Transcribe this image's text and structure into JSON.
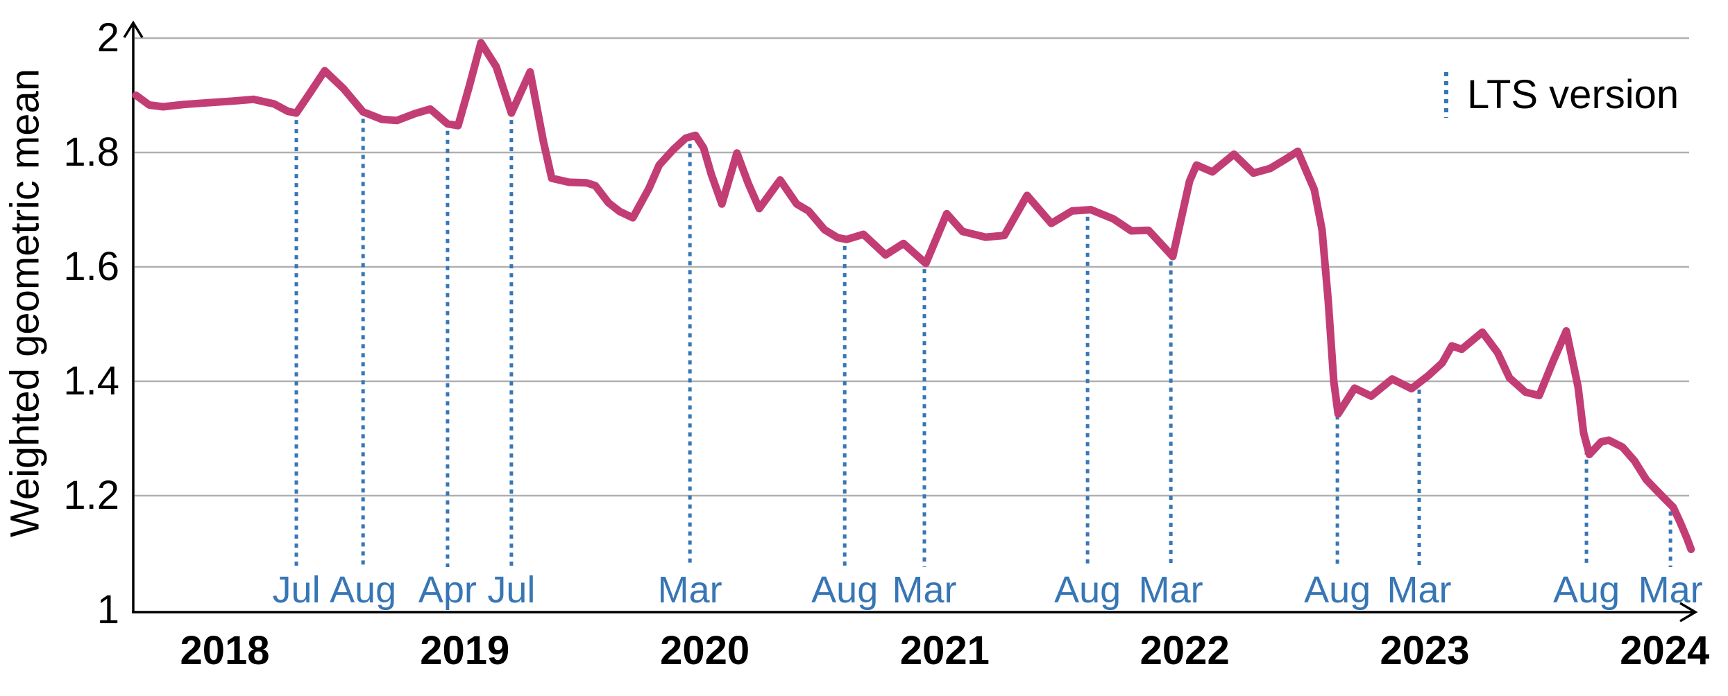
{
  "chart": {
    "y_axis_title": "Weighted geometric mean",
    "legend_label": "LTS version"
  },
  "chart_data": {
    "type": "line",
    "title": "",
    "xlabel": "",
    "ylabel": "Weighted geometric mean",
    "ylim": [
      1,
      2
    ],
    "xlim": [
      2017.58,
      2024.13
    ],
    "grid": "horizontal-only",
    "y_ticks": [
      1,
      1.2,
      1.4,
      1.6,
      1.8,
      2
    ],
    "y_tick_labels": [
      "1",
      "1.2",
      "1.4",
      "1.6",
      "1.8",
      "2"
    ],
    "x_ticks": [
      2018,
      2019,
      2020,
      2021,
      2022,
      2023,
      2024
    ],
    "x_tick_labels": [
      "2018",
      "2019",
      "2020",
      "2021",
      "2022",
      "2023",
      "2024"
    ],
    "legend": {
      "label": "LTS version",
      "position": "top-right",
      "style": "dotted-vertical-line"
    },
    "colors": {
      "series": "#C33D75",
      "lts_marker": "#3776B5",
      "grid": "#B0B0B0",
      "axis": "#000000",
      "background": "#FFFFFF"
    },
    "series": [
      {
        "name": "Weighted geometric mean",
        "color": "#C33D75",
        "points": [
          [
            2017.63,
            1.9
          ],
          [
            2017.685,
            1.883
          ],
          [
            2017.743,
            1.88
          ],
          [
            2017.829,
            1.884
          ],
          [
            2017.931,
            1.887
          ],
          [
            2018.032,
            1.89
          ],
          [
            2018.119,
            1.893
          ],
          [
            2018.205,
            1.885
          ],
          [
            2018.263,
            1.872
          ],
          [
            2018.298,
            1.869
          ],
          [
            2018.356,
            1.905
          ],
          [
            2018.416,
            1.943
          ],
          [
            2018.494,
            1.912
          ],
          [
            2018.576,
            1.871
          ],
          [
            2018.654,
            1.858
          ],
          [
            2018.717,
            1.856
          ],
          [
            2018.792,
            1.868
          ],
          [
            2018.856,
            1.876
          ],
          [
            2018.928,
            1.85
          ],
          [
            2018.972,
            1.847
          ],
          [
            2019.018,
            1.915
          ],
          [
            2019.067,
            1.992
          ],
          [
            2019.131,
            1.95
          ],
          [
            2019.194,
            1.869
          ],
          [
            2019.272,
            1.941
          ],
          [
            2019.327,
            1.82
          ],
          [
            2019.362,
            1.755
          ],
          [
            2019.434,
            1.748
          ],
          [
            2019.507,
            1.747
          ],
          [
            2019.544,
            1.742
          ],
          [
            2019.599,
            1.712
          ],
          [
            2019.645,
            1.697
          ],
          [
            2019.7,
            1.686
          ],
          [
            2019.767,
            1.737
          ],
          [
            2019.81,
            1.778
          ],
          [
            2019.868,
            1.805
          ],
          [
            2019.92,
            1.825
          ],
          [
            2019.961,
            1.83
          ],
          [
            2019.995,
            1.808
          ],
          [
            2020.027,
            1.762
          ],
          [
            2020.071,
            1.71
          ],
          [
            2020.134,
            1.799
          ],
          [
            2020.181,
            1.746
          ],
          [
            2020.227,
            1.702
          ],
          [
            2020.314,
            1.752
          ],
          [
            2020.383,
            1.71
          ],
          [
            2020.432,
            1.698
          ],
          [
            2020.499,
            1.665
          ],
          [
            2020.554,
            1.651
          ],
          [
            2020.591,
            1.648
          ],
          [
            2020.661,
            1.657
          ],
          [
            2020.753,
            1.621
          ],
          [
            2020.828,
            1.641
          ],
          [
            2020.921,
            1.606
          ],
          [
            2021.008,
            1.693
          ],
          [
            2021.074,
            1.662
          ],
          [
            2021.17,
            1.652
          ],
          [
            2021.248,
            1.655
          ],
          [
            2021.343,
            1.725
          ],
          [
            2021.444,
            1.676
          ],
          [
            2021.531,
            1.698
          ],
          [
            2021.609,
            1.7
          ],
          [
            2021.702,
            1.684
          ],
          [
            2021.777,
            1.663
          ],
          [
            2021.849,
            1.664
          ],
          [
            2021.95,
            1.618
          ],
          [
            2022.02,
            1.75
          ],
          [
            2022.049,
            1.778
          ],
          [
            2022.115,
            1.766
          ],
          [
            2022.205,
            1.797
          ],
          [
            2022.286,
            1.764
          ],
          [
            2022.355,
            1.772
          ],
          [
            2022.419,
            1.788
          ],
          [
            2022.471,
            1.802
          ],
          [
            2022.54,
            1.735
          ],
          [
            2022.572,
            1.665
          ],
          [
            2022.598,
            1.54
          ],
          [
            2022.621,
            1.4
          ],
          [
            2022.639,
            1.343
          ],
          [
            2022.708,
            1.388
          ],
          [
            2022.777,
            1.374
          ],
          [
            2022.864,
            1.404
          ],
          [
            2022.945,
            1.387
          ],
          [
            2023.015,
            1.41
          ],
          [
            2023.073,
            1.432
          ],
          [
            2023.113,
            1.462
          ],
          [
            2023.154,
            1.456
          ],
          [
            2023.24,
            1.486
          ],
          [
            2023.304,
            1.45
          ],
          [
            2023.353,
            1.406
          ],
          [
            2023.42,
            1.381
          ],
          [
            2023.477,
            1.375
          ],
          [
            2023.535,
            1.435
          ],
          [
            2023.59,
            1.488
          ],
          [
            2023.639,
            1.39
          ],
          [
            2023.662,
            1.31
          ],
          [
            2023.686,
            1.272
          ],
          [
            2023.735,
            1.294
          ],
          [
            2023.767,
            1.297
          ],
          [
            2023.824,
            1.285
          ],
          [
            2023.874,
            1.261
          ],
          [
            2023.923,
            1.228
          ],
          [
            2023.969,
            1.208
          ],
          [
            2024.006,
            1.192
          ],
          [
            2024.035,
            1.18
          ],
          [
            2024.064,
            1.154
          ],
          [
            2024.093,
            1.125
          ],
          [
            2024.11,
            1.106
          ]
        ]
      }
    ],
    "lts_markers": [
      {
        "label": "Jul",
        "t": 2018.298
      },
      {
        "label": "Aug",
        "t": 2018.576
      },
      {
        "label": "Apr",
        "t": 2018.928
      },
      {
        "label": "Jul",
        "t": 2019.194
      },
      {
        "label": "Mar",
        "t": 2019.938
      },
      {
        "label": "Aug",
        "t": 2020.583
      },
      {
        "label": "Mar",
        "t": 2020.915
      },
      {
        "label": "Aug",
        "t": 2021.595
      },
      {
        "label": "Mar",
        "t": 2021.942
      },
      {
        "label": "Aug",
        "t": 2022.636
      },
      {
        "label": "Mar",
        "t": 2022.977
      },
      {
        "label": "Aug",
        "t": 2023.674
      },
      {
        "label": "Mar",
        "t": 2024.024
      }
    ]
  }
}
